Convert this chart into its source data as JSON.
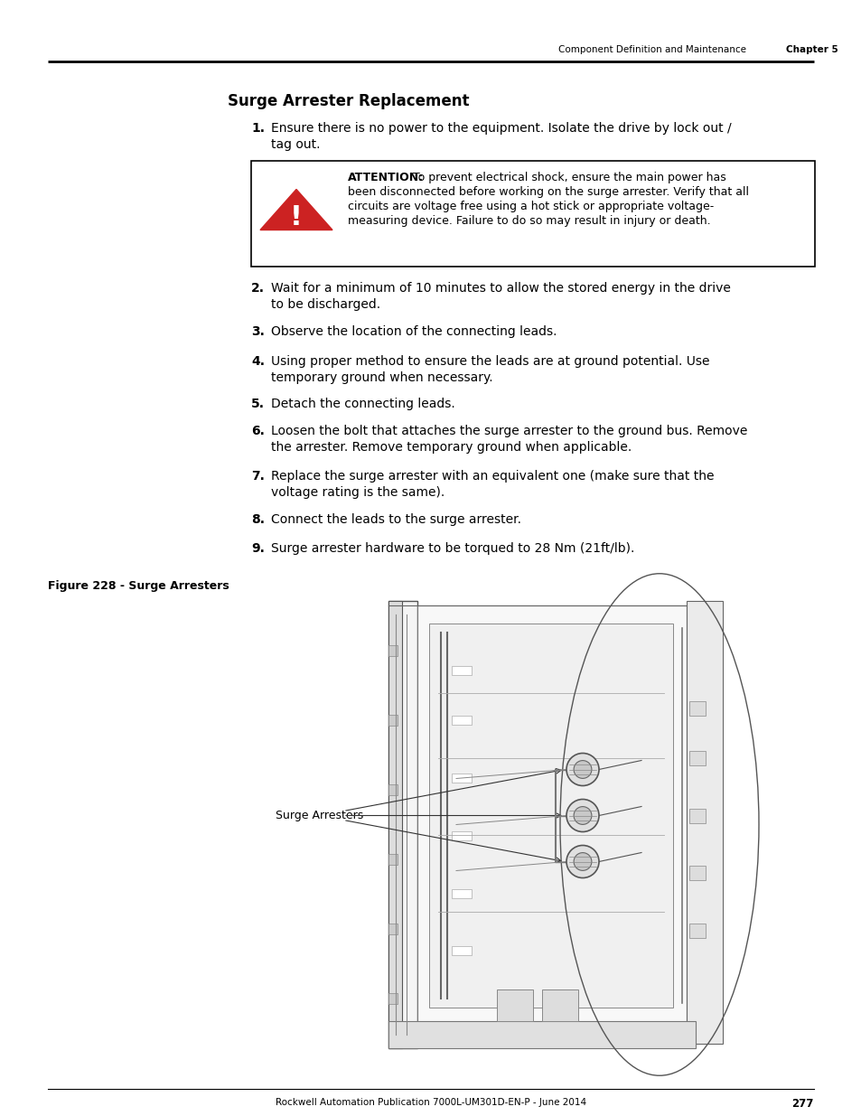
{
  "page_title": "Surge Arrester Replacement",
  "header_right": "Component Definition and Maintenance",
  "header_chapter": "Chapter 5",
  "footer_text": "Rockwell Automation Publication 7000L-UM301D-EN-P - June 2014",
  "footer_page": "277",
  "steps": [
    "Ensure there is no power to the equipment. Isolate the drive by lock out /\ntag out.",
    "Wait for a minimum of 10 minutes to allow the stored energy in the drive\nto be discharged.",
    "Observe the location of the connecting leads.",
    "Using proper method to ensure the leads are at ground potential. Use\ntemporary ground when necessary.",
    "Detach the connecting leads.",
    "Loosen the bolt that attaches the surge arrester to the ground bus. Remove\nthe arrester. Remove temporary ground when applicable.",
    "Replace the surge arrester with an equivalent one (make sure that the\nvoltage rating is the same).",
    "Connect the leads to the surge arrester.",
    "Surge arrester hardware to be torqued to 28 Nm (21ft/lb)."
  ],
  "attention_bold": "ATTENTION:",
  "attention_line1": " To prevent electrical shock, ensure the main power has",
  "attention_line2": "been disconnected before working on the surge arrester. Verify that all",
  "attention_line3": "circuits are voltage free using a hot stick or appropriate voltage-",
  "attention_line4": "measuring device. Failure to do so may result in injury or death.",
  "figure_caption": "Figure 228 - Surge Arresters",
  "label_text": "Surge Arresters",
  "bg_color": "#ffffff",
  "text_color": "#000000"
}
